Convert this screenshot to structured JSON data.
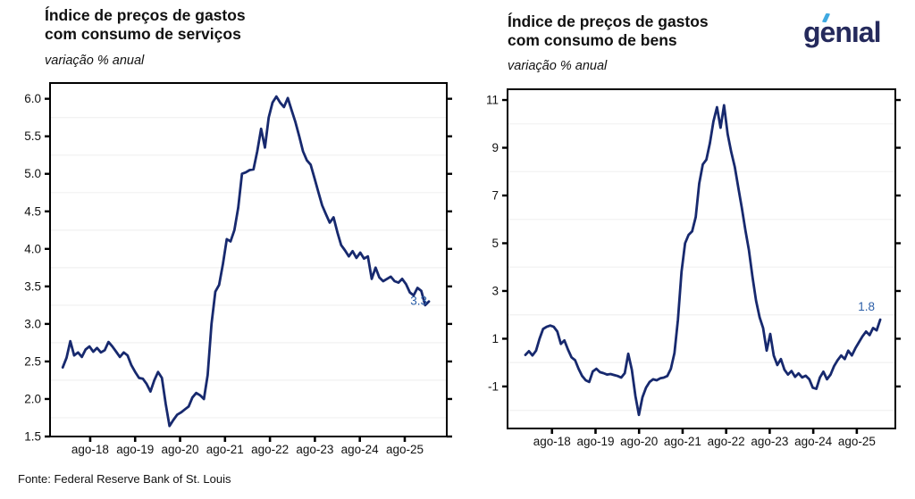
{
  "page": {
    "source_note": "Fonte: Federal Reserve Bank of St. Louis"
  },
  "logo": {
    "text": "genıal",
    "text_color": "#252a5c",
    "accent_color": "#3fa9e0"
  },
  "chart_data": [
    {
      "id": "services",
      "type": "line",
      "title_line1": "Índice de preços de gastos",
      "title_line2": "com consumo de serviços",
      "subtitle": "variação % anual",
      "line_color": "#17296e",
      "end_label": "3.3",
      "end_label_color": "#2c5fa8",
      "x_tick_labels": [
        "ago-18",
        "ago-19",
        "ago-20",
        "ago-21",
        "ago-22",
        "ago-23",
        "ago-24",
        "ago-25"
      ],
      "y_tick_labels": [
        "6.0",
        "5.5",
        "5.0",
        "4.5",
        "4.0",
        "3.5",
        "3.0",
        "2.5",
        "2.0",
        "1.5"
      ],
      "y_tick_values": [
        6.0,
        5.5,
        5.0,
        4.5,
        4.0,
        3.5,
        3.0,
        2.5,
        2.0,
        1.5
      ],
      "gridlines": [
        5.75,
        5.25,
        4.75,
        4.25,
        3.75,
        3.25,
        2.75,
        2.25,
        1.75
      ],
      "y_min": 1.5,
      "y_max": 6.21,
      "values": [
        2.42,
        2.55,
        2.77,
        2.58,
        2.62,
        2.56,
        2.66,
        2.7,
        2.63,
        2.68,
        2.62,
        2.65,
        2.76,
        2.7,
        2.63,
        2.56,
        2.62,
        2.58,
        2.45,
        2.36,
        2.28,
        2.27,
        2.2,
        2.1,
        2.25,
        2.36,
        2.28,
        1.93,
        1.64,
        1.72,
        1.79,
        1.82,
        1.86,
        1.9,
        2.02,
        2.08,
        2.05,
        2.0,
        2.32,
        3.0,
        3.43,
        3.52,
        3.8,
        4.13,
        4.1,
        4.25,
        4.55,
        5.0,
        5.02,
        5.05,
        5.06,
        5.3,
        5.6,
        5.35,
        5.75,
        5.95,
        6.03,
        5.95,
        5.89,
        6.01,
        5.85,
        5.69,
        5.5,
        5.3,
        5.18,
        5.12,
        4.94,
        4.76,
        4.58,
        4.46,
        4.35,
        4.42,
        4.22,
        4.05,
        3.98,
        3.9,
        3.97,
        3.88,
        3.95,
        3.87,
        3.9,
        3.6,
        3.75,
        3.62,
        3.57,
        3.6,
        3.63,
        3.57,
        3.55,
        3.6,
        3.53,
        3.42,
        3.38,
        3.48,
        3.44,
        3.25,
        3.3
      ]
    },
    {
      "id": "goods",
      "type": "line",
      "title_line1": "Índice de preços de gastos",
      "title_line2": "com consumo de bens",
      "subtitle": "variação % anual",
      "line_color": "#17296e",
      "end_label": "1.8",
      "end_label_color": "#2c5fa8",
      "x_tick_labels": [
        "ago-18",
        "ago-19",
        "ago-20",
        "ago-21",
        "ago-22",
        "ago-23",
        "ago-24",
        "ago-25"
      ],
      "y_tick_labels": [
        "11",
        "9",
        "7",
        "5",
        "3",
        "1",
        "-1"
      ],
      "y_tick_values": [
        11,
        9,
        7,
        5,
        3,
        1,
        -1
      ],
      "gridlines": [
        10,
        8,
        6,
        4,
        2,
        0,
        -2
      ],
      "y_min": -2.76,
      "y_max": 11.45,
      "values": [
        0.32,
        0.48,
        0.3,
        0.5,
        1.0,
        1.41,
        1.5,
        1.55,
        1.5,
        1.3,
        0.78,
        0.93,
        0.55,
        0.22,
        0.1,
        -0.26,
        -0.56,
        -0.74,
        -0.81,
        -0.37,
        -0.26,
        -0.4,
        -0.44,
        -0.5,
        -0.48,
        -0.52,
        -0.56,
        -0.63,
        -0.44,
        0.37,
        -0.3,
        -1.4,
        -2.19,
        -1.45,
        -1.05,
        -0.81,
        -0.7,
        -0.74,
        -0.66,
        -0.63,
        -0.56,
        -0.26,
        0.4,
        1.8,
        3.8,
        5.0,
        5.35,
        5.5,
        6.1,
        7.5,
        8.3,
        8.5,
        9.2,
        10.1,
        10.7,
        9.84,
        10.78,
        9.58,
        8.83,
        8.2,
        7.34,
        6.48,
        5.54,
        4.72,
        3.6,
        2.6,
        1.9,
        1.45,
        0.5,
        1.2,
        0.3,
        -0.1,
        0.15,
        -0.3,
        -0.5,
        -0.35,
        -0.6,
        -0.45,
        -0.62,
        -0.55,
        -0.7,
        -1.05,
        -1.1,
        -0.62,
        -0.38,
        -0.7,
        -0.5,
        -0.15,
        0.1,
        0.3,
        0.15,
        0.5,
        0.3,
        0.6,
        0.85,
        1.1,
        1.3,
        1.15,
        1.45,
        1.35,
        1.8
      ]
    }
  ]
}
